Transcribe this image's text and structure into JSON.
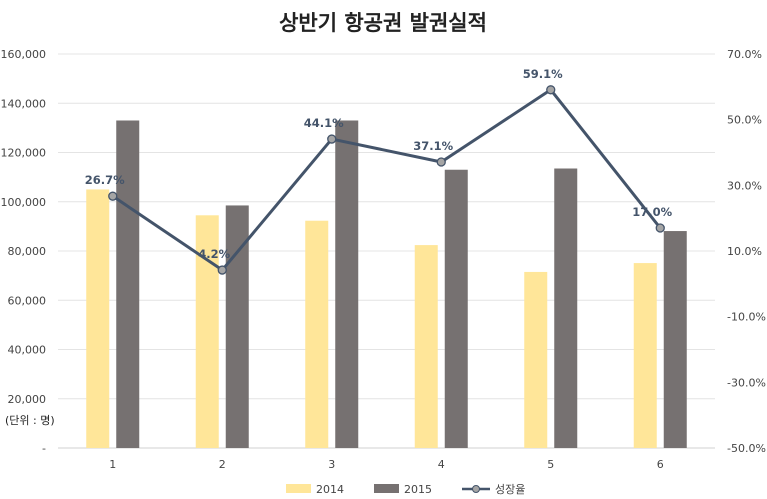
{
  "chart_data": {
    "type": "bar",
    "title": "상반기 항공권 발권실적",
    "unit_label": "(단위 : 명)",
    "categories": [
      "1",
      "2",
      "3",
      "4",
      "5",
      "6"
    ],
    "series": [
      {
        "name": "2014",
        "type": "bar",
        "axis": "left",
        "color": "#ffe699",
        "values": [
          105000,
          94500,
          92300,
          82400,
          71500,
          75100
        ]
      },
      {
        "name": "2015",
        "type": "bar",
        "axis": "left",
        "color": "#767171",
        "values": [
          133000,
          98500,
          133000,
          113000,
          113500,
          88100
        ]
      },
      {
        "name": "성장율",
        "type": "line",
        "axis": "right",
        "color": "#44546a",
        "marker_color": "#a5a5a5",
        "values": [
          26.7,
          4.2,
          44.1,
          37.1,
          59.1,
          17.0
        ],
        "labels": [
          "26.7%",
          "4.2%",
          "44.1%",
          "37.1%",
          "59.1%",
          "17.0%"
        ]
      }
    ],
    "y_left": {
      "range": [
        0,
        160000
      ],
      "ticks": [
        0,
        20000,
        40000,
        60000,
        80000,
        100000,
        120000,
        140000,
        160000
      ],
      "tick_labels": [
        "-",
        "20,000",
        "40,000",
        "60,000",
        "80,000",
        "100,000",
        "120,000",
        "140,000",
        "160,000"
      ]
    },
    "y_right": {
      "range": [
        -50,
        70
      ],
      "ticks": [
        -50,
        -30,
        -10,
        10,
        30,
        50,
        70
      ],
      "tick_labels": [
        "-50.0%",
        "-30.0%",
        "-10.0%",
        "10.0%",
        "30.0%",
        "50.0%",
        "70.0%"
      ]
    },
    "grid": true,
    "legend_position": "bottom"
  }
}
